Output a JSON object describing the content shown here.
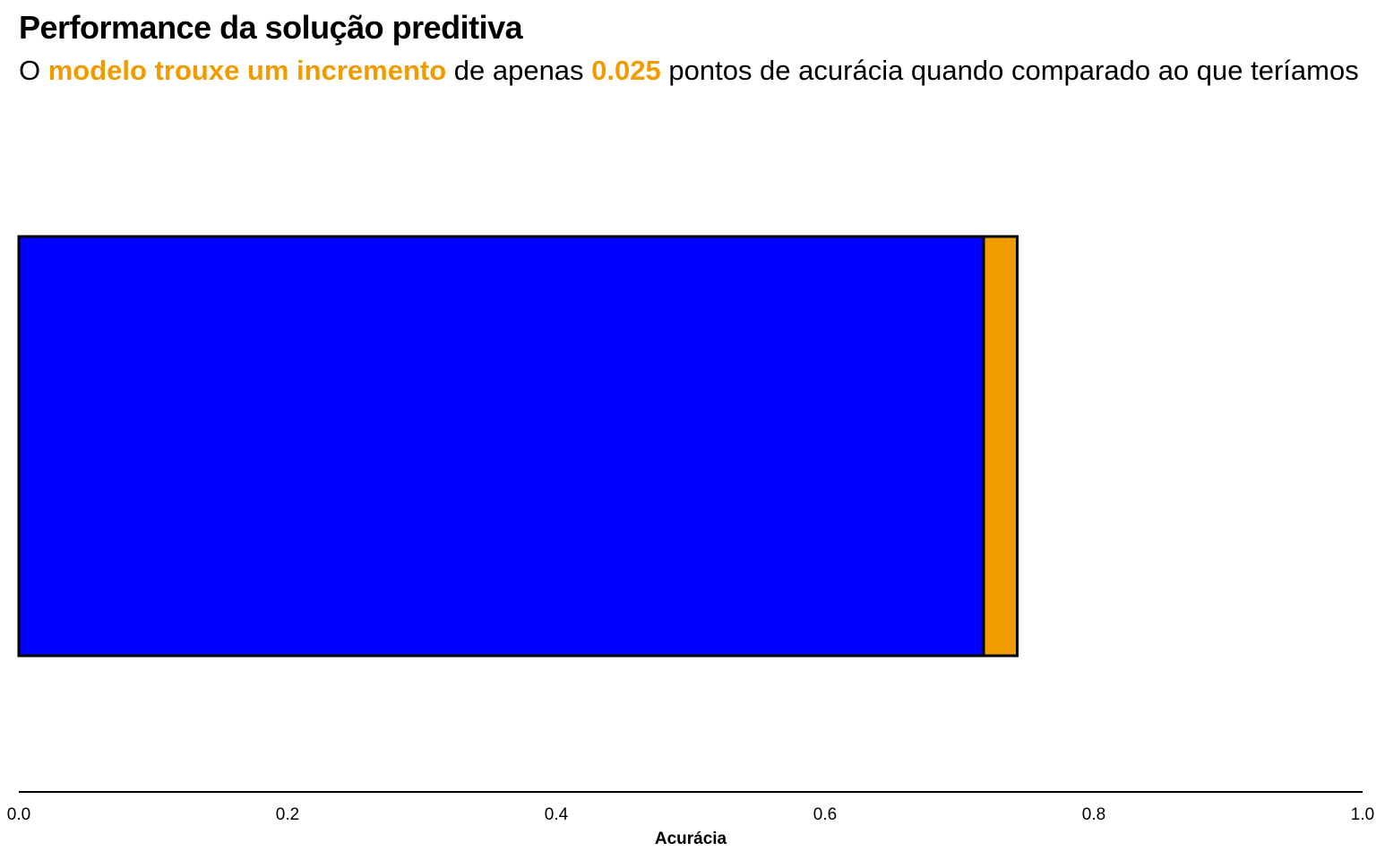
{
  "header": {
    "title": "Performance da solução preditiva",
    "subtitle": {
      "part1": "O ",
      "highlight1": "modelo trouxe um incremento",
      "part2": " de apenas ",
      "highlight2": "0.025",
      "part3": " pontos de acurácia quando comparado ao que teríamos"
    }
  },
  "colors": {
    "baseline": "#0000ff",
    "increment": "#f09b00",
    "highlight": "#f09b00",
    "outline": "#000000"
  },
  "chart_data": {
    "type": "bar",
    "orientation": "horizontal",
    "stacked": true,
    "series": [
      {
        "values": [
          0.718
        ]
      },
      {
        "values": [
          0.025
        ]
      }
    ],
    "xlabel": "Acurácia",
    "xlim": [
      0.0,
      1.0
    ],
    "xticks": [
      "0.0",
      "0.2",
      "0.4",
      "0.6",
      "0.8",
      "1.0"
    ],
    "grid": false,
    "legend": "none"
  }
}
